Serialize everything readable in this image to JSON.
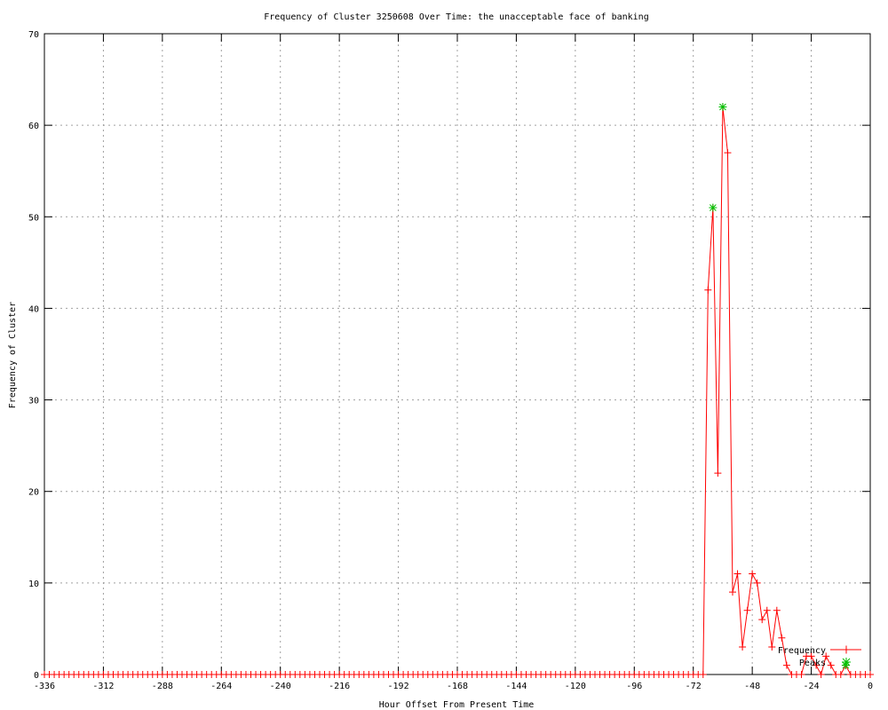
{
  "chart_data": {
    "type": "line",
    "title": "Frequency of Cluster 3250608 Over Time: the unacceptable face of banking",
    "xlabel": "Hour Offset From Present Time",
    "ylabel": "Frequency of Cluster",
    "xlim": [
      -336,
      0
    ],
    "ylim": [
      0,
      70
    ],
    "xticks": [
      -336,
      -312,
      -288,
      -264,
      -240,
      -216,
      -192,
      -168,
      -144,
      -120,
      -96,
      -72,
      -48,
      -24,
      0
    ],
    "yticks": [
      0,
      10,
      20,
      30,
      40,
      50,
      60,
      70
    ],
    "grid": true,
    "legend_position": "bottom-right",
    "colors": {
      "frequency": "#ff0000",
      "peaks": "#00c000",
      "grid": "#a0a0a0"
    },
    "series": [
      {
        "name": "Frequency",
        "style": "lines+crosses",
        "x": [
          -336,
          -334,
          -332,
          -330,
          -328,
          -326,
          -324,
          -322,
          -320,
          -318,
          -316,
          -314,
          -312,
          -310,
          -308,
          -306,
          -304,
          -302,
          -300,
          -298,
          -296,
          -294,
          -292,
          -290,
          -288,
          -286,
          -284,
          -282,
          -280,
          -278,
          -276,
          -274,
          -272,
          -270,
          -268,
          -266,
          -264,
          -262,
          -260,
          -258,
          -256,
          -254,
          -252,
          -250,
          -248,
          -246,
          -244,
          -242,
          -240,
          -238,
          -236,
          -234,
          -232,
          -230,
          -228,
          -226,
          -224,
          -222,
          -220,
          -218,
          -216,
          -214,
          -212,
          -210,
          -208,
          -206,
          -204,
          -202,
          -200,
          -198,
          -196,
          -194,
          -192,
          -190,
          -188,
          -186,
          -184,
          -182,
          -180,
          -178,
          -176,
          -174,
          -172,
          -170,
          -168,
          -166,
          -164,
          -162,
          -160,
          -158,
          -156,
          -154,
          -152,
          -150,
          -148,
          -146,
          -144,
          -142,
          -140,
          -138,
          -136,
          -134,
          -132,
          -130,
          -128,
          -126,
          -124,
          -122,
          -120,
          -118,
          -116,
          -114,
          -112,
          -110,
          -108,
          -106,
          -104,
          -102,
          -100,
          -98,
          -96,
          -94,
          -92,
          -90,
          -88,
          -86,
          -84,
          -82,
          -80,
          -78,
          -76,
          -74,
          -72,
          -70,
          -68,
          -66,
          -64,
          -62,
          -60,
          -58,
          -56,
          -54,
          -52,
          -50,
          -48,
          -46,
          -44,
          -42,
          -40,
          -38,
          -36,
          -34,
          -32,
          -30,
          -28,
          -26,
          -24,
          -22,
          -20,
          -18,
          -16,
          -14,
          -12,
          -10,
          -8,
          -6,
          -4,
          -2,
          0
        ],
        "y": [
          0,
          0,
          0,
          0,
          0,
          0,
          0,
          0,
          0,
          0,
          0,
          0,
          0,
          0,
          0,
          0,
          0,
          0,
          0,
          0,
          0,
          0,
          0,
          0,
          0,
          0,
          0,
          0,
          0,
          0,
          0,
          0,
          0,
          0,
          0,
          0,
          0,
          0,
          0,
          0,
          0,
          0,
          0,
          0,
          0,
          0,
          0,
          0,
          0,
          0,
          0,
          0,
          0,
          0,
          0,
          0,
          0,
          0,
          0,
          0,
          0,
          0,
          0,
          0,
          0,
          0,
          0,
          0,
          0,
          0,
          0,
          0,
          0,
          0,
          0,
          0,
          0,
          0,
          0,
          0,
          0,
          0,
          0,
          0,
          0,
          0,
          0,
          0,
          0,
          0,
          0,
          0,
          0,
          0,
          0,
          0,
          0,
          0,
          0,
          0,
          0,
          0,
          0,
          0,
          0,
          0,
          0,
          0,
          0,
          0,
          0,
          0,
          0,
          0,
          0,
          0,
          0,
          0,
          0,
          0,
          0,
          0,
          0,
          0,
          0,
          0,
          0,
          0,
          0,
          0,
          0,
          0,
          0,
          0,
          0,
          42,
          51,
          22,
          62,
          57,
          9,
          11,
          3,
          7,
          11,
          10,
          6,
          7,
          3,
          7,
          4,
          1,
          0,
          0,
          0,
          2,
          2,
          1,
          0,
          2,
          1,
          0,
          0,
          1,
          0,
          0,
          0,
          0,
          0
        ]
      },
      {
        "name": "Peaks",
        "style": "stars",
        "x": [
          -64,
          -60,
          -10
        ],
        "y": [
          51,
          62,
          1
        ]
      }
    ]
  }
}
